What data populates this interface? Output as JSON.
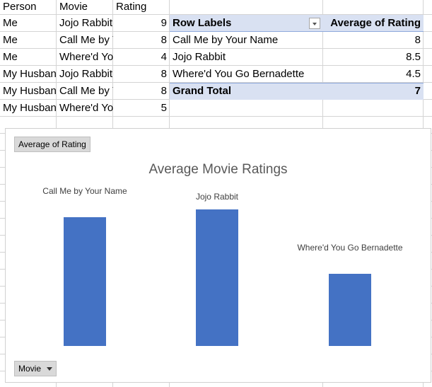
{
  "table": {
    "headers": [
      "Person",
      "Movie",
      "Rating"
    ],
    "rows": [
      {
        "person": "Me",
        "movie": "Jojo Rabbit",
        "rating": "9"
      },
      {
        "person": "Me",
        "movie": "Call Me by Your Name",
        "rating": "8"
      },
      {
        "person": "Me",
        "movie": "Where'd You Go Bernadette",
        "rating": "4"
      },
      {
        "person": "My Husband",
        "movie": "Jojo Rabbit",
        "rating": "8"
      },
      {
        "person": "My Husband",
        "movie": "Call Me by Your Name",
        "rating": "8"
      },
      {
        "person": "My Husband",
        "movie": "Where'd You Go Bernadette",
        "rating": "5"
      }
    ]
  },
  "pivot": {
    "row_labels_header": "Row Labels",
    "value_header": "Average of Rating",
    "rows": [
      {
        "label": "Call Me by Your Name",
        "value": "8"
      },
      {
        "label": "Jojo Rabbit",
        "value": "8.5"
      },
      {
        "label": "Where'd You Go Bernadette",
        "value": "4.5"
      }
    ],
    "grand_total_label": "Grand Total",
    "grand_total_value": "7"
  },
  "chart": {
    "value_field_button": "Average of Rating",
    "axis_field_button": "Movie"
  },
  "chart_data": {
    "type": "bar",
    "title": "Average Movie Ratings",
    "categories": [
      "Call Me by Your Name",
      "Jojo Rabbit",
      "Where'd You Go Bernadette"
    ],
    "values": [
      8,
      8.5,
      4.5
    ],
    "ylim": [
      0,
      10
    ],
    "grid": false,
    "legend": "none",
    "xlabel": "",
    "ylabel": ""
  },
  "colors": {
    "bar": "#4472c4",
    "pivot_band": "#d9e1f2",
    "field_button": "#d9d9d9"
  }
}
